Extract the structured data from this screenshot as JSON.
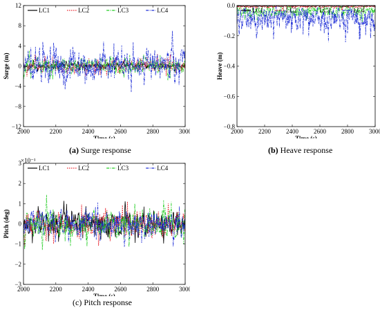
{
  "chart_data": [
    {
      "type": "line",
      "caption_label": "(a)",
      "caption_text": "Surge response",
      "xlabel": "Time (s)",
      "ylabel": "Surge (m)",
      "xlim": [
        2000,
        3000
      ],
      "ylim": [
        -12,
        12
      ],
      "xticks": [
        2000,
        2200,
        2400,
        2600,
        2800,
        3000
      ],
      "yticks": [
        -12,
        -8,
        -4,
        0,
        4,
        8,
        12
      ],
      "multiplier": "",
      "legend_placement": "top",
      "series": [
        {
          "name": "LC1",
          "color": "#000000",
          "dash": "solid",
          "amplitude": 0.6,
          "bias": 0.0,
          "seed": 11,
          "min": -1.5,
          "max": 1.5
        },
        {
          "name": "LC2",
          "color": "#e8202a",
          "dash": "dotted",
          "amplitude": 1.2,
          "bias": 0.0,
          "seed": 23,
          "min": -3,
          "max": 3
        },
        {
          "name": "LC3",
          "color": "#22cc22",
          "dash": "dashdot",
          "amplitude": 1.6,
          "bias": 0.0,
          "seed": 37,
          "min": -4,
          "max": 4
        },
        {
          "name": "LC4",
          "color": "#1f2fd6",
          "dash": "dashdot",
          "amplitude": 3.2,
          "bias": 0.0,
          "seed": 51,
          "min": -7.5,
          "max": 9.5
        }
      ]
    },
    {
      "type": "line",
      "caption_label": "(b)",
      "caption_text": "Heave response",
      "xlabel": "Time (s)",
      "ylabel": "Heave (m)",
      "xlim": [
        2000,
        3000
      ],
      "ylim": [
        -0.8,
        0.0
      ],
      "xticks": [
        2000,
        2200,
        2400,
        2600,
        2800,
        3000
      ],
      "yticks": [
        -0.8,
        -0.6,
        -0.4,
        -0.2,
        0.0
      ],
      "multiplier": "",
      "legend_placement": "top",
      "series": [
        {
          "name": "LC1",
          "color": "#000000",
          "dash": "solid",
          "amplitude": 0.005,
          "bias": -0.003,
          "seed": 13,
          "min": -0.015,
          "max": 0.0
        },
        {
          "name": "LC2",
          "color": "#e8202a",
          "dash": "dotted",
          "amplitude": 0.01,
          "bias": -0.006,
          "seed": 29,
          "min": -0.03,
          "max": 0.0
        },
        {
          "name": "LC3",
          "color": "#22cc22",
          "dash": "dashdot",
          "amplitude": 0.05,
          "bias": -0.03,
          "seed": 41,
          "min": -0.27,
          "max": 0.0
        },
        {
          "name": "LC4",
          "color": "#1f2fd6",
          "dash": "dashdot",
          "amplitude": 0.1,
          "bias": -0.06,
          "seed": 59,
          "min": -0.44,
          "max": 0.0
        }
      ]
    },
    {
      "type": "line",
      "caption_label": "(c)",
      "caption_text": "Pitch response",
      "xlabel": "Time (s)",
      "ylabel": "Pitch (deg)",
      "xlim": [
        2000,
        3000
      ],
      "ylim": [
        -3,
        3
      ],
      "xticks": [
        2000,
        2200,
        2400,
        2600,
        2800,
        3000
      ],
      "yticks": [
        -3,
        -2,
        -1,
        0,
        1,
        2,
        3
      ],
      "multiplier": "×10⁻¹",
      "legend_placement": "top",
      "series": [
        {
          "name": "LC1",
          "color": "#000000",
          "dash": "solid",
          "amplitude": 0.6,
          "bias": 0.0,
          "seed": 17,
          "min": -1.6,
          "max": 1.6
        },
        {
          "name": "LC2",
          "color": "#e8202a",
          "dash": "dotted",
          "amplitude": 0.6,
          "bias": 0.0,
          "seed": 31,
          "min": -1.6,
          "max": 1.7
        },
        {
          "name": "LC3",
          "color": "#22cc22",
          "dash": "dashdot",
          "amplitude": 0.7,
          "bias": 0.0,
          "seed": 43,
          "min": -1.8,
          "max": 1.8
        },
        {
          "name": "LC4",
          "color": "#1f2fd6",
          "dash": "dashdot",
          "amplitude": 0.65,
          "bias": 0.0,
          "seed": 61,
          "min": -1.7,
          "max": 1.9
        }
      ]
    }
  ]
}
